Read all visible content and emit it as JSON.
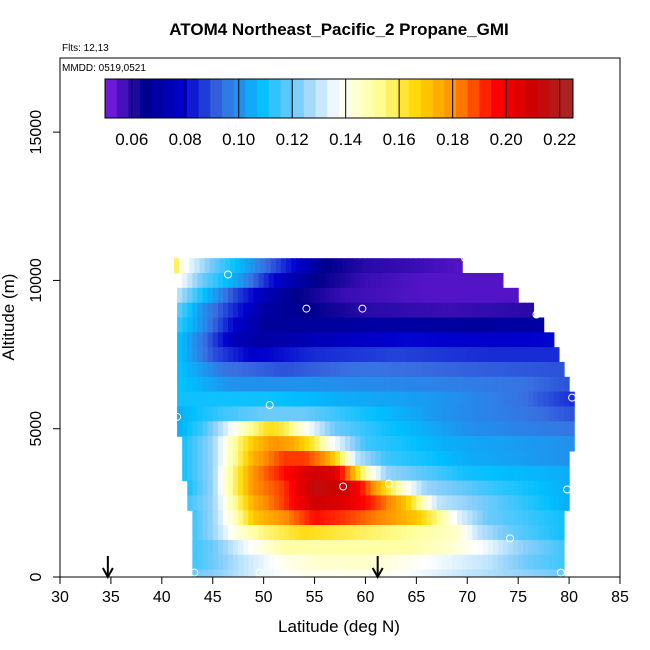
{
  "chart_data": {
    "type": "heatmap",
    "title": "ATOM4 Northeast_Pacific_2 Propane_GMI",
    "flights_text": "Flts: 12,13",
    "dates_text": "MMDD: 0519,0521",
    "xlabel": "Latitude (deg N)",
    "ylabel": "Altitude (m)",
    "xlim": [
      30,
      85
    ],
    "ylim": [
      0,
      17500
    ],
    "x_ticks": [
      "30",
      "35",
      "40",
      "45",
      "50",
      "55",
      "60",
      "65",
      "70",
      "75",
      "80",
      "85"
    ],
    "y_ticks": [
      "0",
      "5000",
      "10000",
      "15000"
    ],
    "colorbar": {
      "range": [
        0.05,
        0.225
      ],
      "tick_labels": [
        "0.06",
        "0.08",
        "0.10",
        "0.12",
        "0.14",
        "0.16",
        "0.18",
        "0.20",
        "0.22"
      ],
      "colors": [
        "#7f1fe6",
        "#00008b",
        "#0000cd",
        "#3a6ee0",
        "#00bfff",
        "#87cefa",
        "#ffffff",
        "#ffff99",
        "#ffd700",
        "#ff8c00",
        "#ff0000",
        "#cd0000",
        "#a52a2a"
      ]
    },
    "field": {
      "rows": [
        {
          "alt": 10500,
          "x0": 41.2,
          "x1": 69.5,
          "profile": [
            [
              41.2,
              0.165
            ],
            [
              42.0,
              0.14
            ],
            [
              45.0,
              0.12
            ],
            [
              49.0,
              0.1
            ],
            [
              52.0,
              0.085
            ],
            [
              56.0,
              0.065
            ],
            [
              60.0,
              0.06
            ],
            [
              65.0,
              0.058
            ],
            [
              69.5,
              0.055
            ]
          ]
        },
        {
          "alt": 10000,
          "x0": 41.5,
          "x1": 73.5,
          "profile": [
            [
              41.5,
              0.14
            ],
            [
              44.0,
              0.12
            ],
            [
              48.0,
              0.1
            ],
            [
              51.0,
              0.08
            ],
            [
              55.0,
              0.065
            ],
            [
              60.0,
              0.058
            ],
            [
              66.0,
              0.055
            ],
            [
              73.5,
              0.055
            ]
          ]
        },
        {
          "alt": 9500,
          "x0": 41.5,
          "x1": 75.0,
          "profile": [
            [
              41.5,
              0.13
            ],
            [
              44.0,
              0.11
            ],
            [
              47.0,
              0.09
            ],
            [
              50.0,
              0.075
            ],
            [
              53.0,
              0.065
            ],
            [
              58.0,
              0.058
            ],
            [
              66.0,
              0.055
            ],
            [
              75.0,
              0.055
            ]
          ]
        },
        {
          "alt": 9000,
          "x0": 41.5,
          "x1": 76.5,
          "profile": [
            [
              41.5,
              0.12
            ],
            [
              44.0,
              0.1
            ],
            [
              47.0,
              0.085
            ],
            [
              50.0,
              0.07
            ],
            [
              54.0,
              0.065
            ],
            [
              60.0,
              0.06
            ],
            [
              68.0,
              0.058
            ],
            [
              76.5,
              0.06
            ]
          ]
        },
        {
          "alt": 8500,
          "x0": 41.5,
          "x1": 77.5,
          "profile": [
            [
              41.5,
              0.115
            ],
            [
              44.0,
              0.1
            ],
            [
              47.0,
              0.08
            ],
            [
              50.0,
              0.068
            ],
            [
              55.0,
              0.068
            ],
            [
              62.0,
              0.07
            ],
            [
              70.0,
              0.068
            ],
            [
              77.5,
              0.07
            ]
          ]
        },
        {
          "alt": 8000,
          "x0": 41.5,
          "x1": 78.5,
          "profile": [
            [
              41.5,
              0.11
            ],
            [
              44.0,
              0.095
            ],
            [
              47.0,
              0.075
            ],
            [
              50.0,
              0.07
            ],
            [
              56.0,
              0.075
            ],
            [
              64.0,
              0.08
            ],
            [
              72.0,
              0.078
            ],
            [
              78.5,
              0.08
            ]
          ]
        },
        {
          "alt": 7500,
          "x0": 41.5,
          "x1": 79.0,
          "profile": [
            [
              41.5,
              0.11
            ],
            [
              45.0,
              0.09
            ],
            [
              49.0,
              0.078
            ],
            [
              55.0,
              0.085
            ],
            [
              63.0,
              0.088
            ],
            [
              72.0,
              0.085
            ],
            [
              79.0,
              0.085
            ]
          ]
        },
        {
          "alt": 7000,
          "x0": 41.5,
          "x1": 79.5,
          "profile": [
            [
              41.5,
              0.11
            ],
            [
              46.0,
              0.095
            ],
            [
              52.0,
              0.09
            ],
            [
              60.0,
              0.095
            ],
            [
              70.0,
              0.092
            ],
            [
              79.5,
              0.09
            ]
          ]
        },
        {
          "alt": 6500,
          "x0": 41.5,
          "x1": 80.0,
          "profile": [
            [
              41.5,
              0.11
            ],
            [
              47.0,
              0.1
            ],
            [
              55.0,
              0.1
            ],
            [
              65.0,
              0.098
            ],
            [
              75.0,
              0.095
            ],
            [
              80.0,
              0.09
            ]
          ]
        },
        {
          "alt": 6000,
          "x0": 41.5,
          "x1": 80.5,
          "profile": [
            [
              41.5,
              0.11
            ],
            [
              46.0,
              0.11
            ],
            [
              50.0,
              0.11
            ],
            [
              58.0,
              0.105
            ],
            [
              66.0,
              0.102
            ],
            [
              75.0,
              0.095
            ],
            [
              80.5,
              0.085
            ]
          ]
        },
        {
          "alt": 5500,
          "x0": 41.5,
          "x1": 80.5,
          "profile": [
            [
              41.5,
              0.105
            ],
            [
              46.0,
              0.115
            ],
            [
              50.0,
              0.12
            ],
            [
              54.0,
              0.12
            ],
            [
              60.0,
              0.11
            ],
            [
              68.0,
              0.1
            ],
            [
              76.0,
              0.095
            ],
            [
              80.5,
              0.09
            ]
          ]
        },
        {
          "alt": 5000,
          "x0": 41.5,
          "x1": 80.5,
          "profile": [
            [
              41.5,
              0.105
            ],
            [
              44.0,
              0.115
            ],
            [
              46.0,
              0.13
            ],
            [
              48.5,
              0.15
            ],
            [
              50.5,
              0.165
            ],
            [
              52.0,
              0.16
            ],
            [
              54.0,
              0.14
            ],
            [
              57.0,
              0.12
            ],
            [
              62.0,
              0.11
            ],
            [
              70.0,
              0.1
            ],
            [
              80.5,
              0.095
            ]
          ]
        },
        {
          "alt": 4500,
          "x0": 42.0,
          "x1": 80.5,
          "profile": [
            [
              42.0,
              0.11
            ],
            [
              45.0,
              0.125
            ],
            [
              47.0,
              0.15
            ],
            [
              49.0,
              0.17
            ],
            [
              51.0,
              0.18
            ],
            [
              53.0,
              0.175
            ],
            [
              55.0,
              0.16
            ],
            [
              56.5,
              0.14
            ],
            [
              60.0,
              0.115
            ],
            [
              68.0,
              0.105
            ],
            [
              80.5,
              0.1
            ]
          ]
        },
        {
          "alt": 4000,
          "x0": 42.0,
          "x1": 80.0,
          "profile": [
            [
              42.0,
              0.11
            ],
            [
              45.0,
              0.125
            ],
            [
              47.0,
              0.15
            ],
            [
              49.0,
              0.175
            ],
            [
              52.0,
              0.19
            ],
            [
              54.0,
              0.19
            ],
            [
              56.0,
              0.18
            ],
            [
              57.5,
              0.16
            ],
            [
              59.0,
              0.13
            ],
            [
              62.0,
              0.115
            ],
            [
              70.0,
              0.105
            ],
            [
              80.0,
              0.1
            ]
          ]
        },
        {
          "alt": 3500,
          "x0": 42.0,
          "x1": 80.0,
          "profile": [
            [
              42.0,
              0.11
            ],
            [
              45.0,
              0.125
            ],
            [
              47.0,
              0.155
            ],
            [
              49.0,
              0.18
            ],
            [
              52.0,
              0.195
            ],
            [
              55.0,
              0.21
            ],
            [
              57.0,
              0.205
            ],
            [
              58.5,
              0.18
            ],
            [
              60.0,
              0.15
            ],
            [
              62.0,
              0.125
            ],
            [
              70.0,
              0.11
            ],
            [
              80.0,
              0.105
            ]
          ]
        },
        {
          "alt": 3000,
          "x0": 42.5,
          "x1": 80.0,
          "profile": [
            [
              42.5,
              0.11
            ],
            [
              45.0,
              0.125
            ],
            [
              47.0,
              0.155
            ],
            [
              49.0,
              0.18
            ],
            [
              52.0,
              0.19
            ],
            [
              55.0,
              0.215
            ],
            [
              58.0,
              0.21
            ],
            [
              60.0,
              0.19
            ],
            [
              62.0,
              0.165
            ],
            [
              64.0,
              0.14
            ],
            [
              66.0,
              0.125
            ],
            [
              72.0,
              0.115
            ],
            [
              80.0,
              0.105
            ]
          ]
        },
        {
          "alt": 2500,
          "x0": 42.5,
          "x1": 80.0,
          "profile": [
            [
              42.5,
              0.115
            ],
            [
              45.0,
              0.125
            ],
            [
              47.0,
              0.15
            ],
            [
              49.0,
              0.175
            ],
            [
              52.0,
              0.19
            ],
            [
              55.0,
              0.21
            ],
            [
              58.0,
              0.205
            ],
            [
              61.0,
              0.19
            ],
            [
              64.0,
              0.17
            ],
            [
              65.5,
              0.15
            ],
            [
              67.0,
              0.13
            ],
            [
              72.0,
              0.12
            ],
            [
              80.0,
              0.105
            ]
          ]
        },
        {
          "alt": 2000,
          "x0": 43.0,
          "x1": 79.5,
          "profile": [
            [
              43.0,
              0.115
            ],
            [
              45.0,
              0.125
            ],
            [
              47.0,
              0.145
            ],
            [
              49.0,
              0.17
            ],
            [
              52.0,
              0.18
            ],
            [
              55.0,
              0.195
            ],
            [
              58.0,
              0.19
            ],
            [
              62.0,
              0.18
            ],
            [
              65.0,
              0.17
            ],
            [
              67.0,
              0.155
            ],
            [
              69.0,
              0.135
            ],
            [
              72.0,
              0.12
            ],
            [
              79.5,
              0.11
            ]
          ]
        },
        {
          "alt": 1500,
          "x0": 43.0,
          "x1": 79.5,
          "profile": [
            [
              43.0,
              0.115
            ],
            [
              45.0,
              0.125
            ],
            [
              47.0,
              0.14
            ],
            [
              50.0,
              0.155
            ],
            [
              54.0,
              0.165
            ],
            [
              58.0,
              0.16
            ],
            [
              62.0,
              0.155
            ],
            [
              66.0,
              0.15
            ],
            [
              69.0,
              0.145
            ],
            [
              71.0,
              0.13
            ],
            [
              74.0,
              0.12
            ],
            [
              79.5,
              0.11
            ]
          ]
        },
        {
          "alt": 1000,
          "x0": 43.0,
          "x1": 79.5,
          "profile": [
            [
              43.0,
              0.115
            ],
            [
              45.0,
              0.12
            ],
            [
              48.0,
              0.135
            ],
            [
              52.0,
              0.15
            ],
            [
              56.0,
              0.15
            ],
            [
              60.0,
              0.15
            ],
            [
              64.0,
              0.15
            ],
            [
              68.0,
              0.145
            ],
            [
              72.0,
              0.135
            ],
            [
              75.0,
              0.125
            ],
            [
              79.5,
              0.115
            ]
          ]
        },
        {
          "alt": 500,
          "x0": 43.0,
          "x1": 79.5,
          "profile": [
            [
              43.0,
              0.115
            ],
            [
              45.0,
              0.12
            ],
            [
              48.0,
              0.13
            ],
            [
              52.0,
              0.14
            ],
            [
              56.0,
              0.145
            ],
            [
              60.0,
              0.145
            ],
            [
              64.0,
              0.14
            ],
            [
              68.0,
              0.135
            ],
            [
              72.0,
              0.13
            ],
            [
              76.0,
              0.12
            ],
            [
              79.5,
              0.115
            ]
          ]
        },
        {
          "alt": 0,
          "x0": 43.0,
          "x1": 79.5,
          "profile": [
            [
              43.0,
              0.12
            ],
            [
              46.0,
              0.125
            ],
            [
              50.0,
              0.135
            ],
            [
              54.0,
              0.14
            ],
            [
              58.0,
              0.14
            ],
            [
              62.0,
              0.14
            ],
            [
              66.0,
              0.135
            ],
            [
              70.0,
              0.13
            ],
            [
              75.0,
              0.125
            ],
            [
              79.5,
              0.12
            ]
          ]
        }
      ]
    },
    "points": [
      [
        46.5,
        10200
      ],
      [
        69.8,
        10750
      ],
      [
        54.2,
        9050
      ],
      [
        59.7,
        9050
      ],
      [
        76.8,
        8850
      ],
      [
        80.3,
        6050
      ],
      [
        50.6,
        5800
      ],
      [
        41.5,
        5400
      ],
      [
        57.8,
        3050
      ],
      [
        62.3,
        3150
      ],
      [
        79.8,
        2950
      ],
      [
        74.2,
        1300
      ],
      [
        43.2,
        150
      ],
      [
        49.6,
        150
      ],
      [
        57.3,
        150
      ],
      [
        79.2,
        150
      ]
    ],
    "arrows_x": [
      34.7,
      61.2
    ]
  }
}
